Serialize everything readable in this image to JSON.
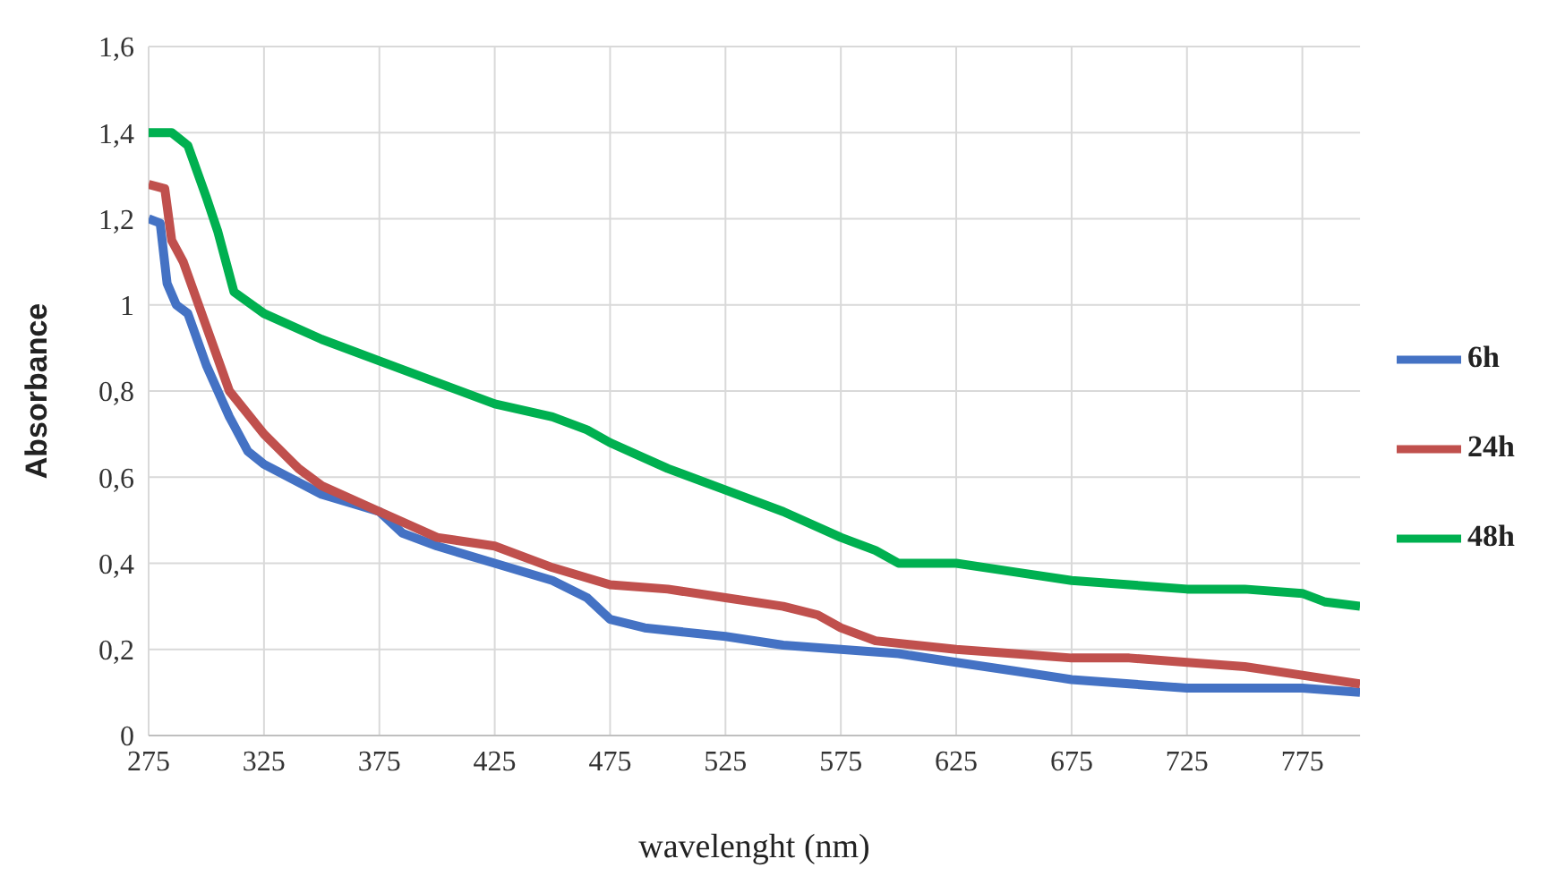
{
  "chart_data": {
    "type": "line",
    "xlabel": "wavelenght (nm)",
    "ylabel": "Absorbance",
    "xlim": [
      275,
      800
    ],
    "xticks": [
      275,
      325,
      375,
      425,
      475,
      525,
      575,
      625,
      675,
      725,
      775
    ],
    "ylim": [
      0,
      1.6
    ],
    "yticks": [
      0,
      {
        "value": 0.2,
        "label": "0,2"
      },
      {
        "value": 0.4,
        "label": "0,4"
      },
      {
        "value": 0.6,
        "label": "0,6"
      },
      {
        "value": 0.8,
        "label": "0,8"
      },
      1,
      {
        "value": 1.2,
        "label": "1,2"
      },
      {
        "value": 1.4,
        "label": "1,4"
      },
      {
        "value": 1.6,
        "label": "1,6"
      }
    ],
    "grid": true,
    "legend": "right",
    "marker": "none",
    "line_style": "solid",
    "series": [
      {
        "name": "6h",
        "color": "#4472c4",
        "x": [
          275,
          280,
          283,
          287,
          292,
          300,
          310,
          318,
          325,
          350,
          375,
          385,
          400,
          425,
          450,
          465,
          475,
          490,
          525,
          550,
          575,
          600,
          625,
          650,
          675,
          700,
          725,
          750,
          775,
          800
        ],
        "values": [
          1.2,
          1.19,
          1.05,
          1.0,
          0.98,
          0.86,
          0.74,
          0.66,
          0.63,
          0.56,
          0.52,
          0.47,
          0.44,
          0.4,
          0.36,
          0.32,
          0.27,
          0.25,
          0.23,
          0.21,
          0.2,
          0.19,
          0.17,
          0.15,
          0.13,
          0.12,
          0.11,
          0.11,
          0.11,
          0.1
        ]
      },
      {
        "name": "24h",
        "color": "#c0504d",
        "x": [
          275,
          282,
          285,
          290,
          300,
          310,
          325,
          340,
          350,
          375,
          400,
          425,
          450,
          475,
          500,
          525,
          550,
          565,
          575,
          590,
          625,
          650,
          675,
          700,
          725,
          750,
          775,
          800
        ],
        "values": [
          1.28,
          1.27,
          1.15,
          1.1,
          0.95,
          0.8,
          0.7,
          0.62,
          0.58,
          0.52,
          0.46,
          0.44,
          0.39,
          0.35,
          0.34,
          0.32,
          0.3,
          0.28,
          0.25,
          0.22,
          0.2,
          0.19,
          0.18,
          0.18,
          0.17,
          0.16,
          0.14,
          0.12
        ]
      },
      {
        "name": "48h",
        "color": "#00b050",
        "x": [
          275,
          285,
          292,
          300,
          305,
          312,
          325,
          350,
          375,
          400,
          425,
          450,
          465,
          475,
          500,
          525,
          550,
          575,
          590,
          600,
          625,
          650,
          675,
          700,
          725,
          750,
          775,
          785,
          800
        ],
        "values": [
          1.4,
          1.4,
          1.37,
          1.25,
          1.17,
          1.03,
          0.98,
          0.92,
          0.87,
          0.82,
          0.77,
          0.74,
          0.71,
          0.68,
          0.62,
          0.57,
          0.52,
          0.46,
          0.43,
          0.4,
          0.4,
          0.38,
          0.36,
          0.35,
          0.34,
          0.34,
          0.33,
          0.31,
          0.3
        ]
      }
    ]
  }
}
